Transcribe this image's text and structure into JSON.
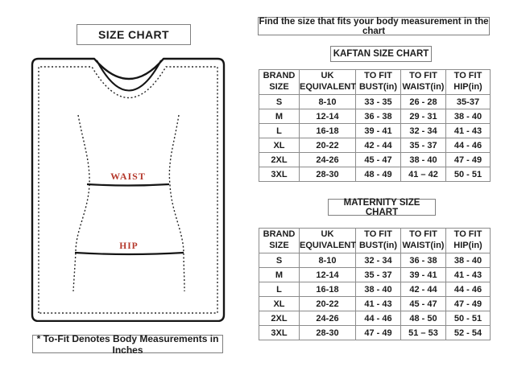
{
  "left": {
    "title": "SIZE CHART",
    "diagram": {
      "waist_label": "WAIST",
      "hip_label": "HIP",
      "label_color": "#b5392c",
      "outline_color": "#151515"
    },
    "footnote": "* To-Fit Denotes Body Measurements in Inches"
  },
  "right": {
    "instruction": "Find the size that fits your body measurement in the chart",
    "tables": [
      {
        "title": "KAFTAN SIZE CHART",
        "headers": [
          "BRAND\nSIZE",
          "UK\nEQUIVALENT",
          "TO FIT\nBUST(in)",
          "TO FIT\nWAIST(in)",
          "TO FIT\nHIP(in)"
        ],
        "rows": [
          [
            "S",
            "8-10",
            "33 - 35",
            "26 - 28",
            "35-37"
          ],
          [
            "M",
            "12-14",
            "36 - 38",
            "29 - 31",
            "38 - 40"
          ],
          [
            "L",
            "16-18",
            "39 - 41",
            "32 - 34",
            "41 - 43"
          ],
          [
            "XL",
            "20-22",
            "42 - 44",
            "35 - 37",
            "44 - 46"
          ],
          [
            "2XL",
            "24-26",
            "45 - 47",
            "38 - 40",
            "47 - 49"
          ],
          [
            "3XL",
            "28-30",
            "48 - 49",
            "41 – 42",
            "50 - 51"
          ]
        ]
      },
      {
        "title": "MATERNITY SIZE CHART",
        "headers": [
          "BRAND\nSIZE",
          "UK\nEQUIVALENT",
          "TO FIT\nBUST(in)",
          "TO FIT\nWAIST(in)",
          "TO FIT\nHIP(in)"
        ],
        "rows": [
          [
            "S",
            "8-10",
            "32 - 34",
            "36 - 38",
            "38 - 40"
          ],
          [
            "M",
            "12-14",
            "35 - 37",
            "39 - 41",
            "41 - 43"
          ],
          [
            "L",
            "16-18",
            "38 - 40",
            "42 - 44",
            "44 - 46"
          ],
          [
            "XL",
            "20-22",
            "41 - 43",
            "45 - 47",
            "47 - 49"
          ],
          [
            "2XL",
            "24-26",
            "44 - 46",
            "48 - 50",
            "50 - 51"
          ],
          [
            "3XL",
            "28-30",
            "47 - 49",
            "51 – 53",
            "52 - 54"
          ]
        ]
      }
    ]
  }
}
